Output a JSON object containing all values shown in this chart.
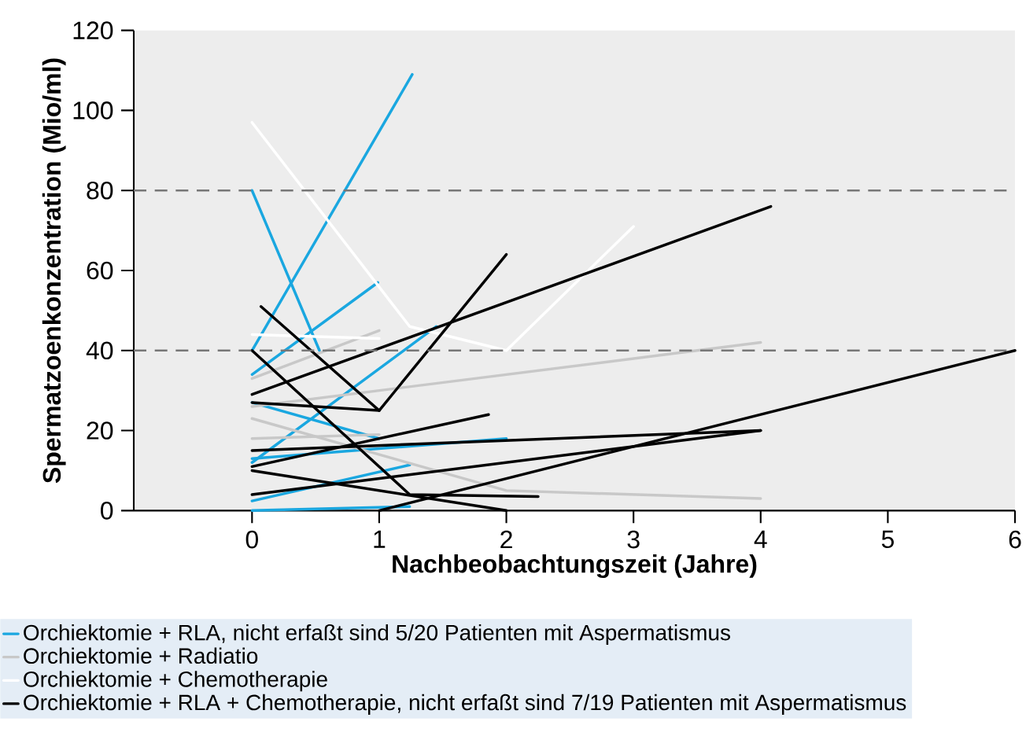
{
  "chart_data": {
    "type": "line",
    "xlabel": "Nachbeobachtungszeit (Jahre)",
    "ylabel": "Spermatzoenkonzentration (Mio/ml)",
    "xlim": [
      -0.93,
      6
    ],
    "ylim": [
      0,
      120
    ],
    "xticks": [
      0,
      1,
      2,
      3,
      4,
      5,
      6
    ],
    "yticks": [
      0,
      20,
      40,
      60,
      80,
      100,
      120
    ],
    "grid": false,
    "legend": "bottom",
    "marker": "none",
    "line_style": "solid",
    "ref_lines": [
      {
        "axis": "y",
        "value": 40,
        "label": null,
        "color": "#777777",
        "line_style": "dashed"
      },
      {
        "axis": "y",
        "value": 80,
        "label": null,
        "color": "#777777",
        "line_style": "dashed"
      }
    ],
    "series": [
      {
        "name": "Orchiektomie + RLA, nicht erfaßt sind 5/20 Patienten mit Aspermatismus",
        "color": "#1aa7e0",
        "x": [
          0,
          0.53
        ],
        "values": [
          80,
          40
        ]
      },
      {
        "color": "#1aa7e0",
        "x": [
          0,
          1.26
        ],
        "values": [
          40,
          109
        ]
      },
      {
        "color": "#1aa7e0",
        "x": [
          0,
          0.99
        ],
        "values": [
          34,
          57
        ]
      },
      {
        "color": "#1aa7e0",
        "x": [
          0,
          1
        ],
        "values": [
          27,
          18
        ]
      },
      {
        "color": "#1aa7e0",
        "x": [
          0,
          1.45
        ],
        "values": [
          12,
          46
        ]
      },
      {
        "color": "#1aa7e0",
        "x": [
          0,
          2
        ],
        "values": [
          13,
          18
        ]
      },
      {
        "color": "#1aa7e0",
        "x": [
          0,
          1.24
        ],
        "values": [
          2.4,
          11.4
        ]
      },
      {
        "color": "#1aa7e0",
        "x": [
          0,
          1.24
        ],
        "values": [
          0,
          1
        ]
      },
      {
        "name": "Orchiektomie + Radiatio",
        "color": "#c8c8c8",
        "x": [
          0,
          1
        ],
        "values": [
          33,
          45
        ]
      },
      {
        "color": "#c8c8c8",
        "x": [
          0,
          4
        ],
        "values": [
          26,
          42
        ]
      },
      {
        "color": "#c8c8c8",
        "x": [
          0,
          2,
          4
        ],
        "values": [
          23,
          5,
          3
        ]
      },
      {
        "color": "#c8c8c8",
        "x": [
          0,
          1
        ],
        "values": [
          18,
          19
        ]
      },
      {
        "name": "Orchiektomie + Chemotherapie",
        "color": "#ffffff",
        "x": [
          0,
          1.24,
          2,
          3
        ],
        "values": [
          97,
          46,
          40,
          71
        ]
      },
      {
        "color": "#ffffff",
        "x": [
          0,
          1
        ],
        "values": [
          44,
          43
        ]
      },
      {
        "name": "Orchiektomie + RLA + Chemotherapie, nicht erfaßt sind 7/19 Patienten mit Aspermatismus",
        "color": "#000000",
        "x": [
          0.07,
          1,
          2
        ],
        "values": [
          51,
          25,
          64
        ]
      },
      {
        "color": "#000000",
        "x": [
          0,
          1.24,
          2.25
        ],
        "values": [
          40,
          4,
          3.5
        ]
      },
      {
        "color": "#000000",
        "x": [
          0,
          4.08
        ],
        "values": [
          29,
          76
        ]
      },
      {
        "color": "#000000",
        "x": [
          0,
          1
        ],
        "values": [
          27,
          25
        ]
      },
      {
        "color": "#000000",
        "x": [
          0,
          4
        ],
        "values": [
          15,
          20
        ]
      },
      {
        "color": "#000000",
        "x": [
          0,
          1.86
        ],
        "values": [
          11,
          24
        ]
      },
      {
        "color": "#000000",
        "x": [
          0,
          4
        ],
        "values": [
          4,
          20
        ]
      },
      {
        "color": "#000000",
        "x": [
          1,
          6
        ],
        "values": [
          0,
          40
        ]
      },
      {
        "color": "#000000",
        "x": [
          0,
          2
        ],
        "values": [
          10,
          0
        ]
      }
    ]
  }
}
